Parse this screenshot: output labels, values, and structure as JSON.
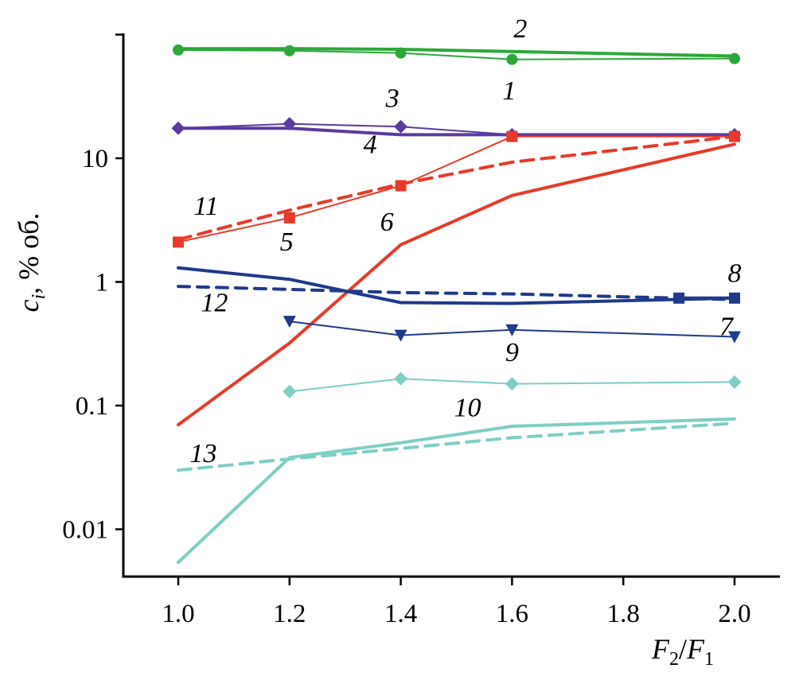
{
  "chart_data": {
    "type": "line",
    "title": "",
    "xlabel": {
      "main": "F",
      "sub1": "2",
      "sep": "/",
      "main2": "F",
      "sub2": "1"
    },
    "ylabel": {
      "main": "c",
      "sub": "i",
      "rest": ", % об."
    },
    "xlim": [
      0.95,
      2.08
    ],
    "ylim": [
      0.005,
      140
    ],
    "yscale": "log",
    "xticks": [
      1.0,
      1.2,
      1.4,
      1.6,
      1.8,
      2.0
    ],
    "xtick_labels": [
      "1.0",
      "1.2",
      "1.4",
      "1.6",
      "1.8",
      "2.0"
    ],
    "yticks": [
      0.01,
      0.1,
      1,
      10,
      100
    ],
    "ytick_labels": [
      "0.01",
      "0.1",
      "1",
      "10",
      ""
    ],
    "series": [
      {
        "name": "1",
        "color": "#2ca83a",
        "width": 2,
        "dash": "",
        "marker": "circle",
        "x": [
          1.0,
          1.2,
          1.4,
          1.6,
          2.0
        ],
        "y": [
          75,
          74,
          71,
          63,
          64
        ]
      },
      {
        "name": "2",
        "color": "#2ca83a",
        "width": 4,
        "dash": "",
        "marker": "none",
        "x": [
          1.0,
          1.2,
          1.4,
          1.6,
          2.0
        ],
        "y": [
          77,
          77,
          76,
          73,
          67
        ]
      },
      {
        "name": "3",
        "color": "#5b3b9e",
        "width": 2,
        "dash": "",
        "marker": "diamond",
        "x": [
          1.0,
          1.2,
          1.4,
          1.6,
          2.0
        ],
        "y": [
          17.5,
          19,
          18,
          15.5,
          15.5
        ]
      },
      {
        "name": "4",
        "color": "#5b3b9e",
        "width": 4,
        "dash": "",
        "marker": "none",
        "x": [
          1.0,
          1.2,
          1.4,
          1.6,
          2.0
        ],
        "y": [
          17.5,
          17.5,
          15.5,
          15.5,
          15.5
        ]
      },
      {
        "name": "5",
        "color": "#e83a2a",
        "width": 2,
        "dash": "",
        "marker": "square",
        "x": [
          1.0,
          1.2,
          1.4,
          1.6,
          2.0
        ],
        "y": [
          2.1,
          3.3,
          6,
          15,
          15
        ]
      },
      {
        "name": "6",
        "color": "#e83a2a",
        "width": 4,
        "dash": "",
        "marker": "none",
        "x": [
          1.0,
          1.2,
          1.4,
          1.6,
          2.0
        ],
        "y": [
          0.07,
          0.32,
          2,
          5,
          13
        ]
      },
      {
        "name": "7",
        "color": "#1f3a8a",
        "width": 4,
        "dash": "",
        "marker": "none",
        "x": [
          1.0,
          1.2,
          1.4,
          1.6,
          2.0
        ],
        "y": [
          1.3,
          1.05,
          0.68,
          0.67,
          0.74
        ]
      },
      {
        "name": "8",
        "color": "#1f3a8a",
        "width": 4,
        "dash": "14,10",
        "marker": "none",
        "x": [
          1.0,
          1.2,
          1.4,
          1.6,
          2.0
        ],
        "y": [
          0.92,
          0.87,
          0.82,
          0.8,
          0.72
        ]
      },
      {
        "name": "9",
        "color": "#1f3a8a",
        "width": 2,
        "dash": "",
        "marker": "triangle-down",
        "x": [
          1.2,
          1.4,
          1.6,
          2.0
        ],
        "y": [
          0.48,
          0.37,
          0.41,
          0.36
        ]
      },
      {
        "name": "10",
        "color": "#7ecec4",
        "width": 4,
        "dash": "",
        "marker": "none",
        "x": [
          1.0,
          1.2,
          1.4,
          1.6,
          2.0
        ],
        "y": [
          0.0054,
          0.038,
          0.05,
          0.068,
          0.078
        ]
      },
      {
        "name": "11",
        "color": "#e83a2a",
        "width": 4,
        "dash": "16,10",
        "marker": "none",
        "x": [
          1.0,
          1.2,
          1.4,
          1.6,
          2.0
        ],
        "y": [
          2.2,
          3.8,
          6.2,
          9.3,
          15
        ]
      },
      {
        "name": "12",
        "color": "#1f3a8a",
        "width": 4,
        "dash": "",
        "marker": "square",
        "x": [
          1.9,
          2.0
        ],
        "y": [
          0.74,
          0.74
        ]
      },
      {
        "name": "13",
        "color": "#7ecec4",
        "width": 4,
        "dash": "16,10",
        "marker": "none",
        "x": [
          1.0,
          1.2,
          1.4,
          1.6,
          2.0
        ],
        "y": [
          0.03,
          0.037,
          0.045,
          0.055,
          0.072
        ]
      },
      {
        "name": "",
        "color": "#7ecec4",
        "width": 2,
        "dash": "",
        "marker": "diamond",
        "x": [
          1.2,
          1.4,
          1.6,
          2.0
        ],
        "y": [
          0.13,
          0.165,
          0.15,
          0.155
        ]
      }
    ],
    "annotations": [
      {
        "text": "1",
        "x": 1.595,
        "y": 30
      },
      {
        "text": "2",
        "x": 1.615,
        "y": 95
      },
      {
        "text": "3",
        "x": 1.385,
        "y": 26
      },
      {
        "text": "4",
        "x": 1.345,
        "y": 11
      },
      {
        "text": "5",
        "x": 1.195,
        "y": 1.8
      },
      {
        "text": "6",
        "x": 1.375,
        "y": 2.6
      },
      {
        "text": "7",
        "x": 1.985,
        "y": 0.37
      },
      {
        "text": "8",
        "x": 2.0,
        "y": 1.0
      },
      {
        "text": "9",
        "x": 1.6,
        "y": 0.23
      },
      {
        "text": "10",
        "x": 1.52,
        "y": 0.082
      },
      {
        "text": "11",
        "x": 1.05,
        "y": 3.5
      },
      {
        "text": "12",
        "x": 1.065,
        "y": 0.58
      },
      {
        "text": "13",
        "x": 1.045,
        "y": 0.035
      }
    ]
  }
}
